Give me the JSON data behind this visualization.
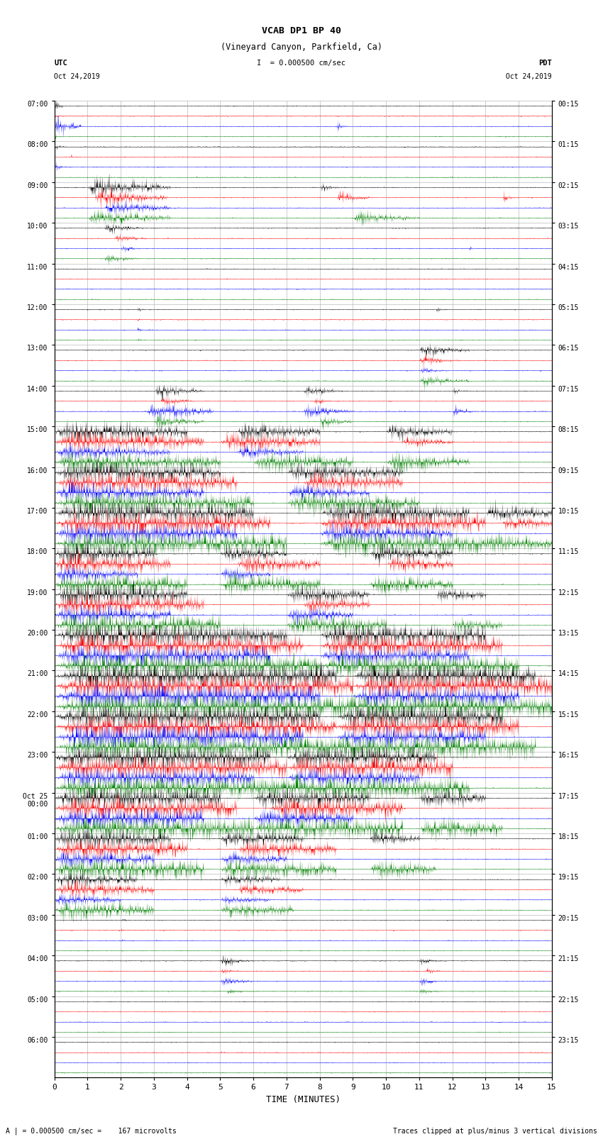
{
  "title_line1": "VCAB DP1 BP 40",
  "title_line2": "(Vineyard Canyon, Parkfield, Ca)",
  "scale_text": "I  = 0.000500 cm/sec",
  "left_label_top": "UTC",
  "left_label_bot": "Oct 24,2019",
  "right_label_top": "PDT",
  "right_label_bot": "Oct 24,2019",
  "bottom_label": "TIME (MINUTES)",
  "footer_left": "A | = 0.000500 cm/sec =    167 microvolts",
  "footer_right": "Traces clipped at plus/minus 3 vertical divisions",
  "utc_times": [
    "07:00",
    "08:00",
    "09:00",
    "10:00",
    "11:00",
    "12:00",
    "13:00",
    "14:00",
    "15:00",
    "16:00",
    "17:00",
    "18:00",
    "19:00",
    "20:00",
    "21:00",
    "22:00",
    "23:00",
    "Oct 25\n00:00",
    "01:00",
    "02:00",
    "03:00",
    "04:00",
    "05:00",
    "06:00"
  ],
  "pdt_times": [
    "00:15",
    "01:15",
    "02:15",
    "03:15",
    "04:15",
    "05:15",
    "06:15",
    "07:15",
    "08:15",
    "09:15",
    "10:15",
    "11:15",
    "12:15",
    "13:15",
    "14:15",
    "15:15",
    "16:15",
    "17:15",
    "18:15",
    "19:15",
    "20:15",
    "21:15",
    "22:15",
    "23:15"
  ],
  "n_rows": 24,
  "n_traces_per_row": 4,
  "trace_colors": [
    "black",
    "red",
    "blue",
    "green"
  ],
  "x_min": 0,
  "x_max": 15,
  "x_ticks": [
    0,
    1,
    2,
    3,
    4,
    5,
    6,
    7,
    8,
    9,
    10,
    11,
    12,
    13,
    14,
    15
  ],
  "bg_color": "#ffffff",
  "grid_color": "#aaaaaa"
}
